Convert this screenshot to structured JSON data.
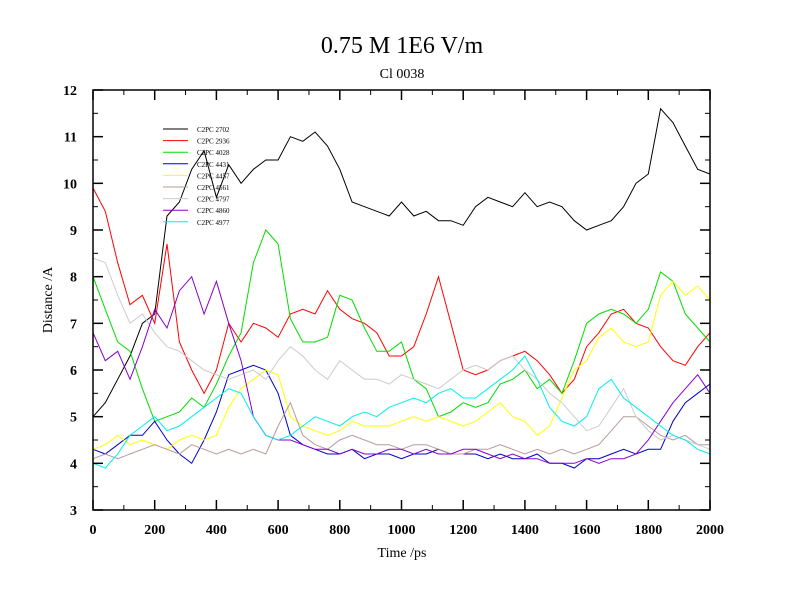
{
  "chart_data": {
    "type": "line",
    "title": "0.75 M 1E6 V/m",
    "subtitle": "Cl 0038",
    "xlabel": "Time /ps",
    "ylabel": "Distance /A",
    "xlim": [
      0,
      2000
    ],
    "ylim": [
      3,
      12
    ],
    "x_ticks": [
      0,
      200,
      400,
      600,
      800,
      1000,
      1200,
      1400,
      1600,
      1800,
      2000
    ],
    "y_ticks": [
      3,
      4,
      5,
      6,
      7,
      8,
      9,
      10,
      11,
      12
    ],
    "grid": false,
    "legend_position": "top-left",
    "series": [
      {
        "name": "C2PC 2702",
        "color": "#000000",
        "x": [
          0,
          40,
          80,
          120,
          160,
          200,
          240,
          280,
          320,
          360,
          400,
          440,
          480,
          520,
          560,
          600,
          640,
          680,
          720,
          760,
          800,
          840,
          880,
          920,
          960,
          1000,
          1040,
          1080,
          1120,
          1160,
          1200,
          1240,
          1280,
          1320,
          1360,
          1400,
          1440,
          1480,
          1520,
          1560,
          1600,
          1640,
          1680,
          1720,
          1760,
          1800,
          1840,
          1880,
          1920,
          1960,
          2000
        ],
        "values": [
          5.0,
          5.3,
          5.8,
          6.3,
          7.0,
          7.2,
          9.3,
          9.6,
          10.3,
          10.7,
          9.7,
          10.4,
          10.0,
          10.3,
          10.5,
          10.5,
          11.0,
          10.9,
          11.1,
          10.8,
          10.3,
          9.6,
          9.5,
          9.4,
          9.3,
          9.6,
          9.3,
          9.4,
          9.2,
          9.2,
          9.1,
          9.5,
          9.7,
          9.6,
          9.5,
          9.8,
          9.5,
          9.6,
          9.5,
          9.2,
          9.0,
          9.1,
          9.2,
          9.5,
          10.0,
          10.2,
          11.6,
          11.3,
          10.8,
          10.3,
          10.2
        ]
      },
      {
        "name": "C2PC 2936",
        "color": "#ff0000",
        "x": [
          0,
          40,
          80,
          120,
          160,
          200,
          240,
          280,
          320,
          360,
          400,
          440,
          480,
          520,
          560,
          600,
          640,
          680,
          720,
          760,
          800,
          840,
          880,
          920,
          960,
          1000,
          1040,
          1080,
          1120,
          1160,
          1200,
          1240,
          1280,
          1320,
          1360,
          1400,
          1440,
          1480,
          1520,
          1560,
          1600,
          1640,
          1680,
          1720,
          1760,
          1800,
          1840,
          1880,
          1920,
          1960,
          2000
        ],
        "values": [
          9.9,
          9.4,
          8.3,
          7.4,
          7.6,
          7.0,
          8.7,
          6.6,
          6.0,
          5.5,
          6.0,
          7.0,
          6.6,
          7.0,
          6.9,
          6.7,
          7.2,
          7.3,
          7.2,
          7.7,
          7.3,
          7.1,
          7.0,
          6.8,
          6.3,
          6.3,
          6.5,
          7.2,
          8.0,
          7.0,
          6.0,
          5.9,
          6.0,
          6.2,
          6.3,
          6.4,
          6.2,
          5.9,
          5.5,
          5.8,
          6.5,
          6.8,
          7.2,
          7.3,
          7.0,
          6.9,
          6.5,
          6.2,
          6.1,
          6.5,
          6.8
        ]
      },
      {
        "name": "C2PC 4028",
        "color": "#00dd00",
        "x": [
          0,
          40,
          80,
          120,
          160,
          200,
          240,
          280,
          320,
          360,
          400,
          440,
          480,
          520,
          560,
          600,
          640,
          680,
          720,
          760,
          800,
          840,
          880,
          920,
          960,
          1000,
          1040,
          1080,
          1120,
          1160,
          1200,
          1240,
          1280,
          1320,
          1360,
          1400,
          1440,
          1480,
          1520,
          1560,
          1600,
          1640,
          1680,
          1720,
          1760,
          1800,
          1840,
          1880,
          1920,
          1960,
          2000
        ],
        "values": [
          8.0,
          7.3,
          6.6,
          6.4,
          5.6,
          4.9,
          5.0,
          5.1,
          5.4,
          5.2,
          5.7,
          6.3,
          6.8,
          8.3,
          9.0,
          8.7,
          7.1,
          6.6,
          6.6,
          6.7,
          7.6,
          7.5,
          6.9,
          6.4,
          6.4,
          6.6,
          5.8,
          5.6,
          5.0,
          5.1,
          5.3,
          5.2,
          5.3,
          5.7,
          5.8,
          6.0,
          5.6,
          5.8,
          5.5,
          6.2,
          7.0,
          7.2,
          7.3,
          7.2,
          7.0,
          7.3,
          8.1,
          7.9,
          7.2,
          6.9,
          6.6
        ]
      },
      {
        "name": "C2PC 4431",
        "color": "#0000cc",
        "x": [
          0,
          40,
          80,
          120,
          160,
          200,
          240,
          280,
          320,
          360,
          400,
          440,
          480,
          520,
          560,
          600,
          640,
          680,
          720,
          760,
          800,
          840,
          880,
          920,
          960,
          1000,
          1040,
          1080,
          1120,
          1160,
          1200,
          1240,
          1280,
          1320,
          1360,
          1400,
          1440,
          1480,
          1520,
          1560,
          1600,
          1640,
          1680,
          1720,
          1760,
          1800,
          1840,
          1880,
          1920,
          1960,
          2000
        ],
        "values": [
          4.3,
          4.2,
          4.4,
          4.6,
          4.6,
          4.9,
          4.5,
          4.2,
          4.0,
          4.5,
          5.1,
          5.9,
          6.0,
          6.1,
          6.0,
          5.5,
          4.6,
          4.4,
          4.3,
          4.2,
          4.2,
          4.3,
          4.1,
          4.2,
          4.2,
          4.1,
          4.2,
          4.2,
          4.3,
          4.2,
          4.2,
          4.2,
          4.1,
          4.2,
          4.1,
          4.1,
          4.2,
          4.0,
          4.0,
          3.9,
          4.1,
          4.1,
          4.2,
          4.3,
          4.2,
          4.3,
          4.3,
          4.9,
          5.3,
          5.5,
          5.7
        ]
      },
      {
        "name": "C2PC 4457",
        "color": "#ffff00",
        "x": [
          0,
          40,
          80,
          120,
          160,
          200,
          240,
          280,
          320,
          360,
          400,
          440,
          480,
          520,
          560,
          600,
          640,
          680,
          720,
          760,
          800,
          840,
          880,
          920,
          960,
          1000,
          1040,
          1080,
          1120,
          1160,
          1200,
          1240,
          1280,
          1320,
          1360,
          1400,
          1440,
          1480,
          1520,
          1560,
          1600,
          1640,
          1680,
          1720,
          1760,
          1800,
          1840,
          1880,
          1920,
          1960,
          2000
        ],
        "values": [
          4.3,
          4.4,
          4.6,
          4.4,
          4.5,
          4.4,
          4.3,
          4.5,
          4.6,
          4.5,
          4.6,
          5.2,
          5.6,
          5.8,
          6.0,
          5.9,
          5.0,
          4.8,
          4.7,
          4.6,
          4.7,
          4.9,
          4.8,
          4.8,
          4.8,
          4.9,
          5.0,
          4.9,
          5.0,
          4.9,
          4.8,
          4.9,
          5.1,
          5.3,
          5.0,
          4.9,
          4.6,
          4.8,
          5.4,
          6.0,
          6.2,
          6.7,
          6.9,
          6.6,
          6.5,
          6.6,
          7.6,
          7.9,
          7.6,
          7.8,
          7.5
        ]
      },
      {
        "name": "C2PC 4561",
        "color": "#b89a9a",
        "x": [
          0,
          40,
          80,
          120,
          160,
          200,
          240,
          280,
          320,
          360,
          400,
          440,
          480,
          520,
          560,
          600,
          640,
          680,
          720,
          760,
          800,
          840,
          880,
          920,
          960,
          1000,
          1040,
          1080,
          1120,
          1160,
          1200,
          1240,
          1280,
          1320,
          1360,
          1400,
          1440,
          1480,
          1520,
          1560,
          1600,
          1640,
          1680,
          1720,
          1760,
          1800,
          1840,
          1880,
          1920,
          1960,
          2000
        ],
        "values": [
          4.1,
          4.2,
          4.1,
          4.2,
          4.3,
          4.4,
          4.3,
          4.2,
          4.4,
          4.3,
          4.2,
          4.3,
          4.2,
          4.3,
          4.2,
          4.8,
          5.3,
          4.6,
          4.4,
          4.3,
          4.5,
          4.6,
          4.5,
          4.4,
          4.4,
          4.3,
          4.4,
          4.4,
          4.3,
          4.2,
          4.2,
          4.3,
          4.3,
          4.4,
          4.3,
          4.2,
          4.3,
          4.2,
          4.3,
          4.2,
          4.3,
          4.4,
          4.7,
          5.0,
          5.0,
          4.8,
          4.6,
          4.5,
          4.6,
          4.4,
          4.4
        ]
      },
      {
        "name": "C2PC 4797",
        "color": "#cccccc",
        "x": [
          0,
          40,
          80,
          120,
          160,
          200,
          240,
          280,
          320,
          360,
          400,
          440,
          480,
          520,
          560,
          600,
          640,
          680,
          720,
          760,
          800,
          840,
          880,
          920,
          960,
          1000,
          1040,
          1080,
          1120,
          1160,
          1200,
          1240,
          1280,
          1320,
          1360,
          1400,
          1440,
          1480,
          1520,
          1560,
          1600,
          1640,
          1680,
          1720,
          1760,
          1800,
          1840,
          1880,
          1920,
          1960,
          2000
        ],
        "values": [
          8.4,
          8.3,
          7.6,
          7.0,
          7.2,
          6.8,
          6.5,
          6.4,
          6.2,
          6.0,
          5.9,
          5.8,
          5.9,
          6.0,
          5.8,
          6.2,
          6.5,
          6.3,
          6.0,
          5.8,
          6.2,
          6.0,
          5.8,
          5.8,
          5.7,
          5.9,
          5.8,
          5.7,
          5.6,
          5.8,
          6.0,
          6.1,
          6.0,
          6.2,
          6.3,
          6.0,
          5.8,
          5.5,
          5.3,
          5.0,
          4.7,
          4.8,
          5.2,
          5.6,
          5.0,
          4.7,
          4.5,
          4.6,
          4.5,
          4.4,
          4.3
        ]
      },
      {
        "name": "C2PC 4860",
        "color": "#8800cc",
        "x": [
          0,
          40,
          80,
          120,
          160,
          200,
          240,
          280,
          320,
          360,
          400,
          440,
          480,
          520,
          560,
          600,
          640,
          680,
          720,
          760,
          800,
          840,
          880,
          920,
          960,
          1000,
          1040,
          1080,
          1120,
          1160,
          1200,
          1240,
          1280,
          1320,
          1360,
          1400,
          1440,
          1480,
          1520,
          1560,
          1600,
          1640,
          1680,
          1720,
          1760,
          1800,
          1840,
          1880,
          1920,
          1960,
          2000
        ],
        "values": [
          6.8,
          6.2,
          6.4,
          5.8,
          6.5,
          7.3,
          6.9,
          7.7,
          8.0,
          7.2,
          7.9,
          7.0,
          6.2,
          5.0,
          4.6,
          4.5,
          4.5,
          4.4,
          4.3,
          4.3,
          4.2,
          4.3,
          4.2,
          4.2,
          4.3,
          4.3,
          4.2,
          4.3,
          4.2,
          4.2,
          4.3,
          4.3,
          4.2,
          4.1,
          4.2,
          4.1,
          4.1,
          4.0,
          4.0,
          4.0,
          4.1,
          4.0,
          4.1,
          4.1,
          4.2,
          4.5,
          4.9,
          5.3,
          5.6,
          5.9,
          5.5
        ]
      },
      {
        "name": "C2PC 4977",
        "color": "#00eeee",
        "x": [
          0,
          40,
          80,
          120,
          160,
          200,
          240,
          280,
          320,
          360,
          400,
          440,
          480,
          520,
          560,
          600,
          640,
          680,
          720,
          760,
          800,
          840,
          880,
          920,
          960,
          1000,
          1040,
          1080,
          1120,
          1160,
          1200,
          1240,
          1280,
          1320,
          1360,
          1400,
          1440,
          1480,
          1520,
          1560,
          1600,
          1640,
          1680,
          1720,
          1760,
          1800,
          1840,
          1880,
          1920,
          1960,
          2000
        ],
        "values": [
          4.0,
          3.9,
          4.2,
          4.6,
          4.8,
          5.0,
          4.7,
          4.8,
          5.0,
          5.2,
          5.4,
          5.6,
          5.5,
          5.0,
          4.6,
          4.5,
          4.6,
          4.8,
          5.0,
          4.9,
          4.8,
          5.0,
          5.1,
          5.0,
          5.2,
          5.3,
          5.4,
          5.3,
          5.5,
          5.6,
          5.4,
          5.4,
          5.6,
          5.8,
          6.0,
          6.3,
          5.8,
          5.2,
          4.9,
          4.8,
          5.0,
          5.6,
          5.8,
          5.4,
          5.2,
          5.0,
          4.8,
          4.6,
          4.5,
          4.3,
          4.2
        ]
      }
    ]
  }
}
